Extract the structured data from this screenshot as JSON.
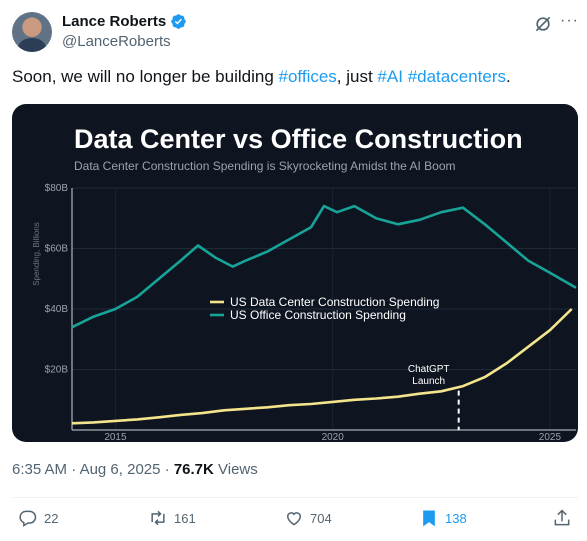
{
  "author": {
    "name": "Lance Roberts",
    "handle": "@LanceRoberts"
  },
  "icons": {
    "verified": "verified-badge-icon",
    "grok": "grok-icon",
    "more": "more-icon",
    "reply": "reply-icon",
    "retweet": "retweet-icon",
    "like": "like-icon",
    "bookmark": "bookmark-icon",
    "share": "share-icon"
  },
  "tweet": {
    "text_before": "Soon, we will no longer be building ",
    "tag_offices": "#offices",
    "text_mid": ", just ",
    "tag_ai": "#AI",
    "text_space": " ",
    "tag_datacenters": "#datacenters",
    "text_end": "."
  },
  "meta": {
    "time": "6:35 AM",
    "sep1": " · ",
    "date": "Aug 6, 2025",
    "sep2": " · ",
    "views_count": "76.7K",
    "views_label": " Views"
  },
  "actions": {
    "replies": "22",
    "retweets": "161",
    "likes": "704",
    "bookmarks": "138"
  },
  "colors": {
    "accent": "#1d9bf0",
    "datacenter_line": "#f4e58c",
    "office_line": "#17a398",
    "chart_bg": "#0e1521"
  },
  "chart_data": {
    "type": "line",
    "title": "Data Center vs Office Construction",
    "subtitle": "Data Center Construction Spending is Skyrocketing Amidst the AI Boom",
    "ylabel": "Spending, Billions",
    "xlabel": "",
    "ylim": [
      0,
      80
    ],
    "xlim": [
      2014,
      2025.6
    ],
    "y_ticks": [
      "$20B",
      "$40B",
      "$60B",
      "$80B"
    ],
    "x_ticks": [
      "2015",
      "2020",
      "2025"
    ],
    "legend_position": "center",
    "annotation": {
      "text_line1": "ChatGPT",
      "text_line2": "Launch",
      "x": 2022.9
    },
    "series": [
      {
        "name": "US Data Center Construction Spending",
        "x": [
          2014.0,
          2014.5,
          2015.0,
          2015.5,
          2016.0,
          2016.5,
          2017.0,
          2017.5,
          2018.0,
          2018.5,
          2019.0,
          2019.5,
          2020.0,
          2020.5,
          2021.0,
          2021.5,
          2022.0,
          2022.5,
          2023.0,
          2023.5,
          2024.0,
          2024.5,
          2025.0,
          2025.5
        ],
        "values": [
          2.2,
          2.5,
          3.0,
          3.5,
          4.2,
          5.0,
          5.6,
          6.5,
          7.0,
          7.5,
          8.2,
          8.6,
          9.3,
          10.0,
          10.4,
          11.0,
          12.0,
          12.8,
          14.5,
          17.5,
          22.0,
          27.5,
          33.0,
          40.0
        ]
      },
      {
        "name": "US Office Construction Spending",
        "x": [
          2014.0,
          2014.5,
          2015.0,
          2015.5,
          2016.0,
          2016.5,
          2016.9,
          2017.3,
          2017.7,
          2018.0,
          2018.5,
          2019.0,
          2019.5,
          2019.8,
          2020.1,
          2020.5,
          2021.0,
          2021.5,
          2022.0,
          2022.5,
          2023.0,
          2023.5,
          2024.0,
          2024.5,
          2025.0,
          2025.6
        ],
        "values": [
          34.0,
          37.5,
          40.0,
          44.0,
          50.0,
          56.0,
          61.0,
          57.0,
          54.0,
          56.0,
          59.0,
          63.0,
          67.0,
          74.0,
          72.0,
          74.0,
          70.0,
          68.0,
          69.5,
          72.0,
          73.5,
          68.0,
          62.0,
          56.0,
          52.0,
          47.0
        ]
      }
    ]
  }
}
